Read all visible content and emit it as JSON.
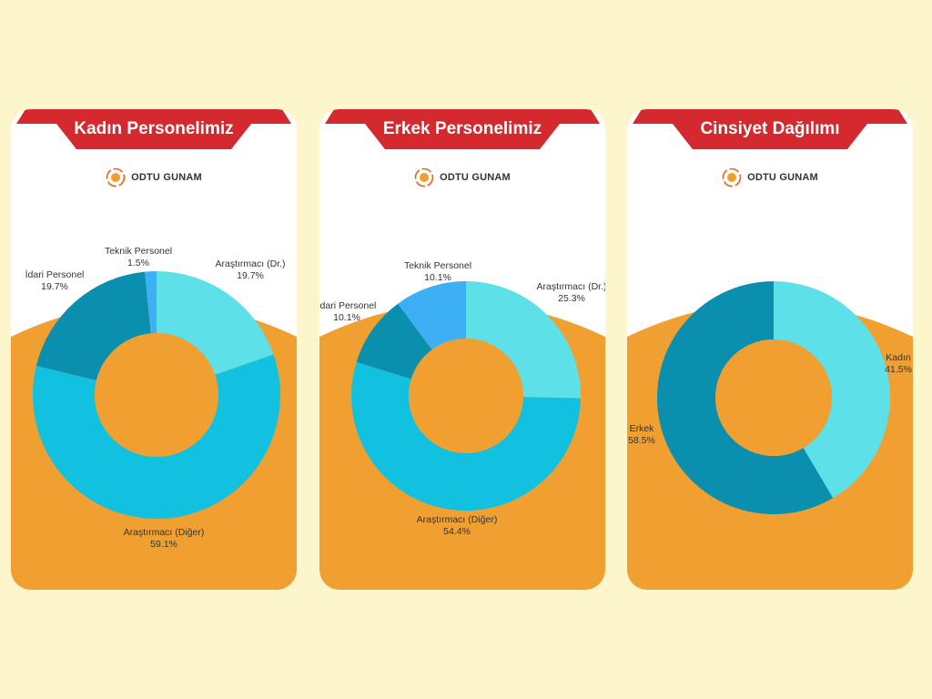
{
  "brand": {
    "logo_text": "ODTU GUNAM"
  },
  "colors": {
    "page_bg": "#fdf6cd",
    "ribbon": "#d42a2f",
    "card_bottom": "#f0a030",
    "card_top": "#ffffff",
    "hole": "#f0a030"
  },
  "cards": [
    {
      "title": "Kadın Personelimiz"
    },
    {
      "title": "Erkek Personelimiz"
    },
    {
      "title": "Cinsiyet Dağılımı"
    }
  ],
  "chart_data": [
    {
      "type": "pie",
      "title": "Kadın Personelimiz",
      "slices": [
        {
          "label": "Araştırmacı (Dr.)",
          "value": 19.7,
          "value_label": "19.7%",
          "color": "#5ee0e8"
        },
        {
          "label": "Araştırmacı (Diğer)",
          "value": 59.1,
          "value_label": "59.1%",
          "color": "#12c0e0"
        },
        {
          "label": "İdari Personel",
          "value": 19.7,
          "value_label": "19.7%",
          "color": "#0a8fae"
        },
        {
          "label": "Teknik Personel",
          "value": 1.5,
          "value_label": "1.5%",
          "color": "#3db0f5"
        }
      ]
    },
    {
      "type": "pie",
      "title": "Erkek Personelimiz",
      "slices": [
        {
          "label": "Araştırmacı (Dr.)",
          "value": 25.3,
          "value_label": "25.3%",
          "color": "#5ee0e8"
        },
        {
          "label": "Araştırmacı (Diğer)",
          "value": 54.4,
          "value_label": "54.4%",
          "color": "#12c0e0"
        },
        {
          "label": "İdari Personel",
          "value": 10.1,
          "value_label": "10.1%",
          "color": "#0a8fae"
        },
        {
          "label": "Teknik Personel",
          "value": 10.1,
          "value_label": "10.1%",
          "color": "#3db0f5"
        }
      ]
    },
    {
      "type": "pie",
      "title": "Cinsiyet Dağılımı",
      "slices": [
        {
          "label": "Kadın",
          "value": 41.5,
          "value_label": "41.5%",
          "color": "#5ee0e8"
        },
        {
          "label": "Erkek",
          "value": 58.5,
          "value_label": "58.5%",
          "color": "#0a8fae"
        }
      ]
    }
  ]
}
